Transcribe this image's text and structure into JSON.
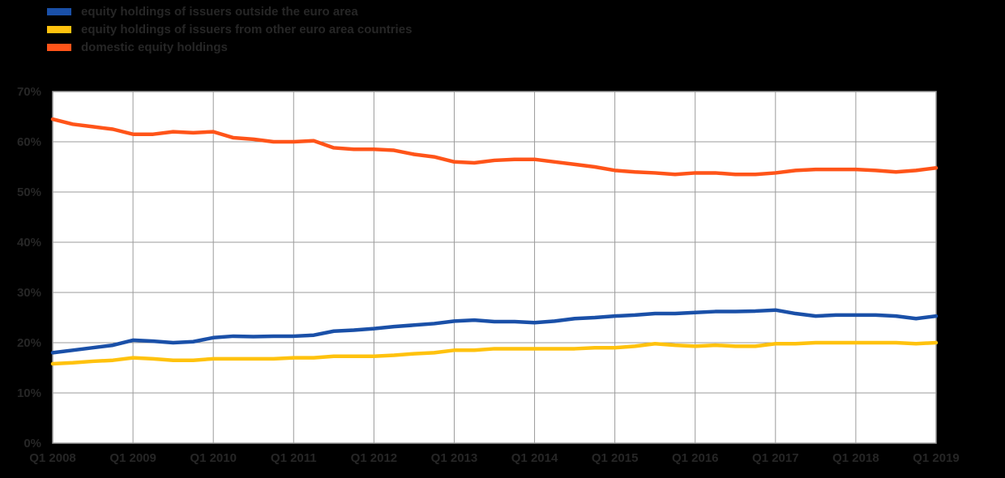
{
  "legend": {
    "items": [
      {
        "label": "equity holdings of issuers outside the euro area",
        "color": "#1a50a8"
      },
      {
        "label": "equity holdings of issuers from other euro area countries",
        "color": "#ffc20e"
      },
      {
        "label": "domestic equity holdings",
        "color": "#ff5419"
      }
    ]
  },
  "chart_data": {
    "type": "line",
    "title": "",
    "xlabel": "",
    "ylabel": "",
    "ylim": [
      0,
      70
    ],
    "yticks": [
      0,
      10,
      20,
      30,
      40,
      50,
      60,
      70
    ],
    "ytick_suffix": "%",
    "grid": true,
    "grid_color": "#9b9b9b",
    "text_color": "#262626",
    "plot_bg": "#ffffff",
    "legend_position": "top-left",
    "x_ticks": [
      "Q1 2008",
      "Q1 2009",
      "Q1 2010",
      "Q1 2011",
      "Q1 2012",
      "Q1 2013",
      "Q1 2014",
      "Q1 2015",
      "Q1 2016",
      "Q1 2017",
      "Q1 2018",
      "Q1 2019"
    ],
    "x_frequency": "quarterly",
    "series": [
      {
        "name": "equity holdings of issuers outside the euro area",
        "color": "#1a50a8",
        "values": [
          18.0,
          18.5,
          19.0,
          19.5,
          20.5,
          20.3,
          20.0,
          20.2,
          21.0,
          21.3,
          21.2,
          21.3,
          21.3,
          21.5,
          22.3,
          22.5,
          22.8,
          23.2,
          23.5,
          23.8,
          24.3,
          24.5,
          24.2,
          24.2,
          24.0,
          24.3,
          24.8,
          25.0,
          25.3,
          25.5,
          25.8,
          25.8,
          26.0,
          26.2,
          26.2,
          26.3,
          26.5,
          25.8,
          25.3,
          25.5,
          25.5,
          25.5,
          25.3,
          24.8,
          25.3
        ]
      },
      {
        "name": "equity holdings of issuers from other euro area countries",
        "color": "#ffc20e",
        "values": [
          15.8,
          16.0,
          16.3,
          16.5,
          17.0,
          16.8,
          16.5,
          16.5,
          16.8,
          16.8,
          16.8,
          16.8,
          17.0,
          17.0,
          17.3,
          17.3,
          17.3,
          17.5,
          17.8,
          18.0,
          18.5,
          18.5,
          18.8,
          18.8,
          18.8,
          18.8,
          18.8,
          19.0,
          19.0,
          19.3,
          19.8,
          19.5,
          19.3,
          19.5,
          19.3,
          19.3,
          19.8,
          19.8,
          20.0,
          20.0,
          20.0,
          20.0,
          20.0,
          19.8,
          20.0
        ]
      },
      {
        "name": "domestic equity holdings",
        "color": "#ff5419",
        "values": [
          64.5,
          63.5,
          63.0,
          62.5,
          61.5,
          61.5,
          62.0,
          61.8,
          62.0,
          60.8,
          60.5,
          60.0,
          60.0,
          60.2,
          58.8,
          58.5,
          58.5,
          58.3,
          57.5,
          57.0,
          56.0,
          55.8,
          56.3,
          56.5,
          56.5,
          56.0,
          55.5,
          55.0,
          54.3,
          54.0,
          53.8,
          53.5,
          53.8,
          53.8,
          53.5,
          53.5,
          53.8,
          54.3,
          54.5,
          54.5,
          54.5,
          54.3,
          54.0,
          54.3,
          54.8
        ]
      }
    ]
  }
}
